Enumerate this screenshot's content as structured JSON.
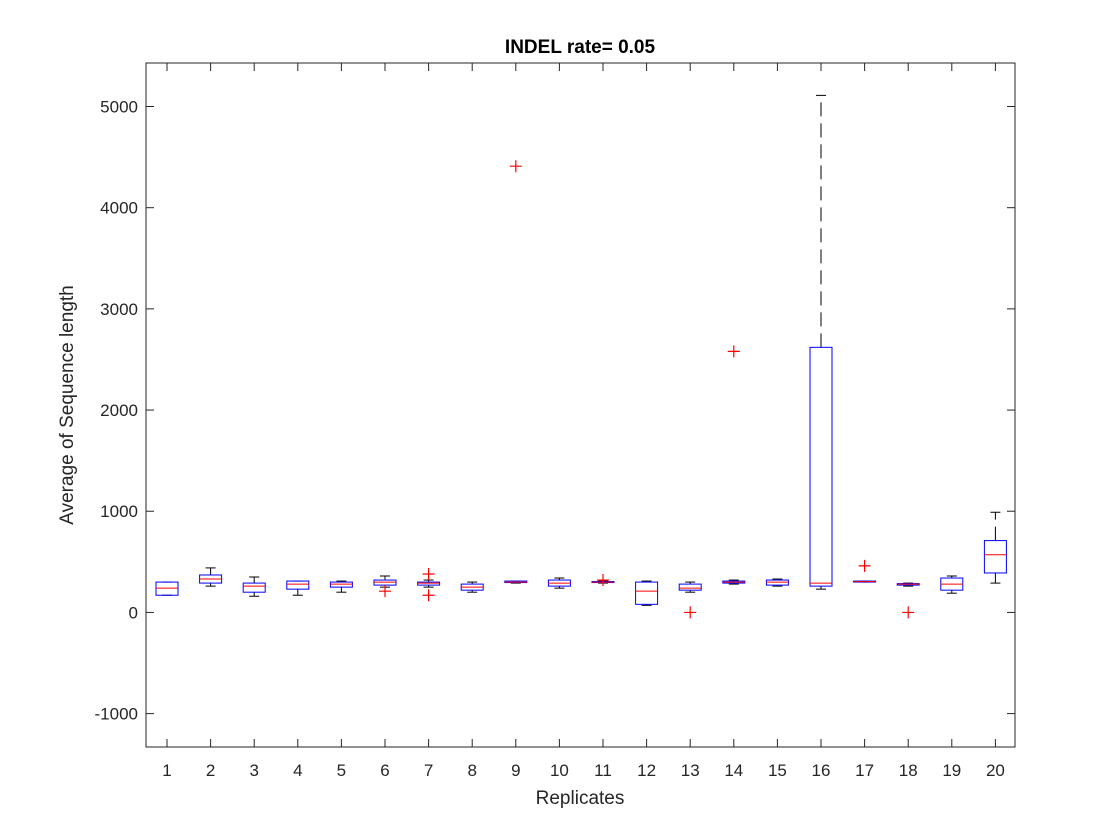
{
  "chart_data": {
    "type": "boxplot",
    "title": "INDEL rate= 0.05",
    "xlabel": "Replicates",
    "ylabel": "Average of Sequence length",
    "ylim": [
      -1330,
      5430
    ],
    "yticks": [
      -1000,
      0,
      1000,
      2000,
      3000,
      4000,
      5000
    ],
    "grid": false,
    "categories": [
      "1",
      "2",
      "3",
      "4",
      "5",
      "6",
      "7",
      "8",
      "9",
      "10",
      "11",
      "12",
      "13",
      "14",
      "15",
      "16",
      "17",
      "18",
      "19",
      "20"
    ],
    "colors": {
      "box": "#0000ff",
      "median": "#ff0000",
      "whisker": "#000000",
      "outlier": "#ff0000",
      "axis": "#262626"
    },
    "boxes": [
      {
        "label": "1",
        "lw": 170,
        "q1": 170,
        "med": 240,
        "q3": 300,
        "uw": 300,
        "outliers": []
      },
      {
        "label": "2",
        "lw": 260,
        "q1": 290,
        "med": 330,
        "q3": 370,
        "uw": 440,
        "outliers": []
      },
      {
        "label": "3",
        "lw": 160,
        "q1": 200,
        "med": 260,
        "q3": 290,
        "uw": 350,
        "outliers": []
      },
      {
        "label": "4",
        "lw": 170,
        "q1": 230,
        "med": 280,
        "q3": 310,
        "uw": 310,
        "outliers": []
      },
      {
        "label": "5",
        "lw": 200,
        "q1": 250,
        "med": 280,
        "q3": 300,
        "uw": 310,
        "outliers": []
      },
      {
        "label": "6",
        "lw": 250,
        "q1": 270,
        "med": 300,
        "q3": 320,
        "uw": 360,
        "outliers": [
          210
        ]
      },
      {
        "label": "7",
        "lw": 250,
        "q1": 270,
        "med": 290,
        "q3": 300,
        "uw": 320,
        "outliers": [
          380,
          170
        ]
      },
      {
        "label": "8",
        "lw": 200,
        "q1": 220,
        "med": 250,
        "q3": 280,
        "uw": 300,
        "outliers": []
      },
      {
        "label": "9",
        "lw": 290,
        "q1": 295,
        "med": 300,
        "q3": 310,
        "uw": 310,
        "outliers": [
          4410
        ]
      },
      {
        "label": "10",
        "lw": 240,
        "q1": 260,
        "med": 290,
        "q3": 320,
        "uw": 340,
        "outliers": []
      },
      {
        "label": "11",
        "lw": 290,
        "q1": 295,
        "med": 300,
        "q3": 305,
        "uw": 310,
        "outliers": [
          320
        ]
      },
      {
        "label": "12",
        "lw": 70,
        "q1": 80,
        "med": 210,
        "q3": 300,
        "uw": 310,
        "outliers": []
      },
      {
        "label": "13",
        "lw": 200,
        "q1": 220,
        "med": 240,
        "q3": 280,
        "uw": 300,
        "outliers": [
          0
        ]
      },
      {
        "label": "14",
        "lw": 280,
        "q1": 290,
        "med": 300,
        "q3": 310,
        "uw": 320,
        "outliers": [
          2580
        ]
      },
      {
        "label": "15",
        "lw": 260,
        "q1": 270,
        "med": 300,
        "q3": 320,
        "uw": 330,
        "outliers": []
      },
      {
        "label": "16",
        "lw": 230,
        "q1": 260,
        "med": 290,
        "q3": 2620,
        "uw": 5110,
        "outliers": []
      },
      {
        "label": "17",
        "lw": 300,
        "q1": 300,
        "med": 305,
        "q3": 310,
        "uw": 310,
        "outliers": [
          460
        ]
      },
      {
        "label": "18",
        "lw": 260,
        "q1": 270,
        "med": 280,
        "q3": 285,
        "uw": 290,
        "outliers": [
          0
        ]
      },
      {
        "label": "19",
        "lw": 190,
        "q1": 220,
        "med": 280,
        "q3": 340,
        "uw": 360,
        "outliers": []
      },
      {
        "label": "20",
        "lw": 290,
        "q1": 390,
        "med": 570,
        "q3": 710,
        "uw": 990,
        "outliers": []
      }
    ]
  }
}
